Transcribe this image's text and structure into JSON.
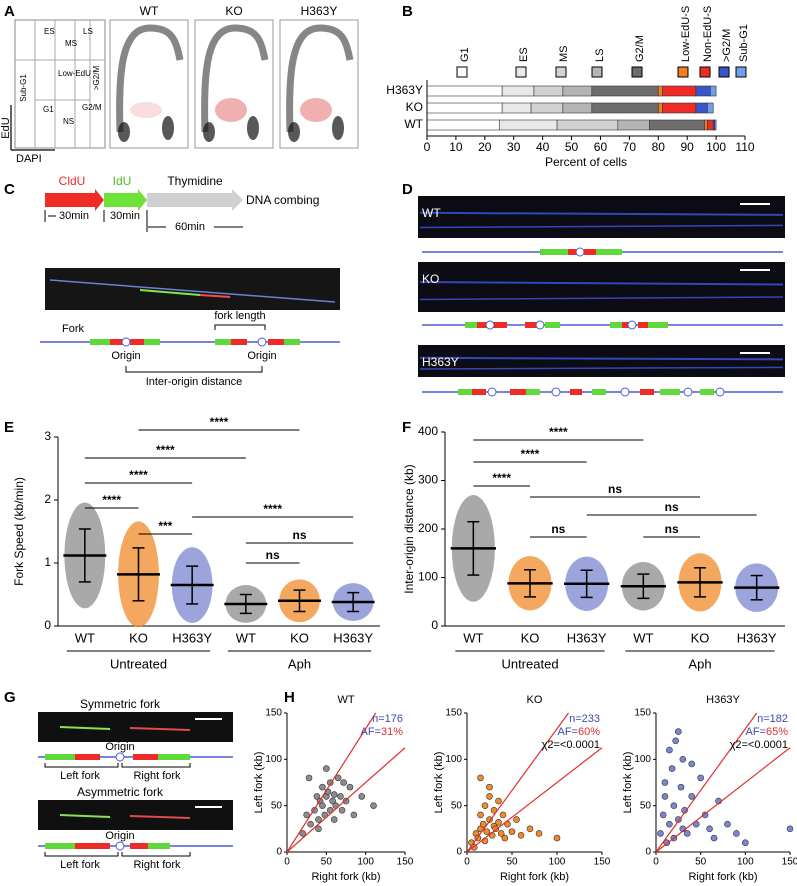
{
  "panel_labels": [
    "A",
    "B",
    "C",
    "D",
    "E",
    "F",
    "G",
    "H"
  ],
  "panel_a": {
    "samples": [
      "WT",
      "KO",
      "H363Y"
    ],
    "gates": [
      "ES",
      "MS",
      "LS",
      "Sub-G1",
      "Low-EdU",
      "G1",
      "NS",
      "G2/M",
      ">G2/M"
    ],
    "x_axis": "DAPI",
    "y_axis": "EdU"
  },
  "panel_c": {
    "cldu": "CldU",
    "idu": "IdU",
    "thymidine": "Thymidine",
    "combing": "DNA combing",
    "durations": [
      "30min",
      "30min",
      "60min"
    ],
    "fork": "Fork",
    "fork_length": "fork length",
    "origins": [
      "Origin",
      "Origin"
    ],
    "inter_origin": "Inter-origin distance"
  },
  "panel_d": {
    "samples": [
      "WT",
      "KO",
      "H363Y"
    ]
  },
  "panel_g": {
    "symmetric": {
      "title": "Symmetric fork",
      "origin": "Origin",
      "left": "Left fork",
      "right": "Right fork"
    },
    "asymmetric": {
      "title": "Asymmetric fork",
      "origin": "Origin",
      "left": "Left fork",
      "right": "Right fork"
    }
  },
  "chart_data": [
    {
      "type": "stacked_bar_h",
      "xlabel": "Percent of cells",
      "categories": [
        "H363Y",
        "KO",
        "WT"
      ],
      "xlim": [
        0,
        110
      ],
      "xticks": [
        0,
        10,
        20,
        30,
        40,
        50,
        60,
        70,
        80,
        90,
        100,
        110
      ],
      "series": [
        {
          "name": "G1",
          "color": "#ffffff",
          "values": [
            26,
            26,
            25
          ]
        },
        {
          "name": "ES",
          "color": "#e8e8e8",
          "values": [
            11,
            10,
            20
          ]
        },
        {
          "name": "MS",
          "color": "#d2d2d2",
          "values": [
            10,
            11,
            21
          ]
        },
        {
          "name": "LS",
          "color": "#b4b4b4",
          "values": [
            10,
            10,
            11
          ]
        },
        {
          "name": "G2/M",
          "color": "#6d6d6d",
          "values": [
            23,
            23,
            19
          ]
        },
        {
          "name": "Low-EdU-S",
          "color": "#f07f22",
          "values": [
            1.5,
            1.5,
            1
          ]
        },
        {
          "name": "Non-EdU-S",
          "color": "#ee2b24",
          "values": [
            11.5,
            11.5,
            2
          ]
        },
        {
          "name": ">G2/M",
          "color": "#3a55c8",
          "values": [
            5,
            4,
            0.5
          ]
        },
        {
          "name": "Sub-G1",
          "color": "#6f9fe6",
          "values": [
            2,
            2,
            0.5
          ]
        }
      ]
    },
    {
      "type": "dot_plot",
      "ylabel": "Fork Speed (kb/min)",
      "categories": [
        "WT",
        "KO",
        "H363Y",
        "WT",
        "KO",
        "H363Y"
      ],
      "groups": [
        "Untreated",
        "Aph"
      ],
      "colors": [
        "#8c8c8c",
        "#f08a2a",
        "#7b86d0",
        "#8c8c8c",
        "#f08a2a",
        "#7b86d0"
      ],
      "means": [
        1.12,
        0.82,
        0.65,
        0.35,
        0.4,
        0.38
      ],
      "sd": [
        0.42,
        0.42,
        0.3,
        0.15,
        0.17,
        0.15
      ],
      "ylim": [
        0,
        3
      ],
      "yticks": [
        0,
        1,
        2,
        3
      ],
      "comparisons": [
        {
          "pair": [
            1,
            4
          ],
          "label": "****"
        },
        {
          "pair": [
            0,
            3
          ],
          "label": "****"
        },
        {
          "pair": [
            0,
            2
          ],
          "label": "****"
        },
        {
          "pair": [
            0,
            1
          ],
          "label": "****"
        },
        {
          "pair": [
            2,
            5
          ],
          "label": "****"
        },
        {
          "pair": [
            1,
            2
          ],
          "label": "***"
        },
        {
          "pair": [
            3,
            5
          ],
          "label": "ns"
        },
        {
          "pair": [
            3,
            4
          ],
          "label": "ns"
        }
      ]
    },
    {
      "type": "dot_plot",
      "ylabel": "Inter-origin distance (kb)",
      "categories": [
        "WT",
        "KO",
        "H363Y",
        "WT",
        "KO",
        "H363Y"
      ],
      "groups": [
        "Untreated",
        "Aph"
      ],
      "colors": [
        "#8c8c8c",
        "#f08a2a",
        "#7b86d0",
        "#8c8c8c",
        "#f08a2a",
        "#7b86d0"
      ],
      "means": [
        160,
        88,
        87,
        82,
        90,
        79
      ],
      "sd": [
        55,
        28,
        28,
        25,
        30,
        25
      ],
      "ylim": [
        0,
        400
      ],
      "yticks": [
        0,
        100,
        200,
        300,
        400
      ],
      "comparisons": [
        {
          "pair": [
            0,
            3
          ],
          "label": "****"
        },
        {
          "pair": [
            0,
            2
          ],
          "label": "****"
        },
        {
          "pair": [
            0,
            1
          ],
          "label": "****"
        },
        {
          "pair": [
            1,
            4
          ],
          "label": "ns"
        },
        {
          "pair": [
            2,
            5
          ],
          "label": "ns"
        },
        {
          "pair": [
            1,
            2
          ],
          "label": "ns"
        },
        {
          "pair": [
            3,
            4
          ],
          "label": "ns"
        }
      ]
    },
    {
      "type": "scatter",
      "title": "WT",
      "xlabel": "Right fork (kb)",
      "ylabel": "Left fork (kb)",
      "xlim": [
        0,
        150
      ],
      "ylim": [
        0,
        150
      ],
      "xticks": [
        0,
        50,
        100,
        150
      ],
      "yticks": [
        0,
        50,
        100,
        150
      ],
      "color": "#8c8c8c",
      "ref_lines": {
        "color": "#e03030",
        "slopes": [
          1.33,
          0.75
        ]
      },
      "n": "n=176",
      "af": [
        "AF=",
        "31%"
      ],
      "x": [
        20,
        25,
        30,
        35,
        38,
        40,
        42,
        45,
        45,
        48,
        50,
        52,
        55,
        55,
        58,
        60,
        62,
        65,
        68,
        70,
        75,
        80,
        85,
        95,
        110,
        28,
        50,
        60,
        40,
        72
      ],
      "y": [
        20,
        40,
        30,
        45,
        60,
        35,
        55,
        50,
        70,
        40,
        60,
        65,
        45,
        75,
        55,
        62,
        50,
        80,
        60,
        45,
        55,
        70,
        40,
        60,
        50,
        80,
        90,
        35,
        25,
        75
      ]
    },
    {
      "type": "scatter",
      "title": "KO",
      "xlabel": "Right fork (kb)",
      "ylabel": "Left fork (kb)",
      "xlim": [
        0,
        150
      ],
      "ylim": [
        0,
        150
      ],
      "xticks": [
        0,
        50,
        100,
        150
      ],
      "yticks": [
        0,
        50,
        100,
        150
      ],
      "color": "#f08a2a",
      "ref_lines": {
        "color": "#e03030",
        "slopes": [
          1.33,
          0.75
        ]
      },
      "n": "n=233",
      "af": [
        "AF=",
        "60%"
      ],
      "chi": "χ2=<0.0001",
      "x": [
        5,
        8,
        10,
        12,
        15,
        15,
        18,
        20,
        20,
        22,
        25,
        25,
        28,
        30,
        30,
        32,
        35,
        38,
        40,
        42,
        45,
        50,
        55,
        60,
        70,
        80,
        100,
        15,
        25,
        35
      ],
      "y": [
        10,
        5,
        20,
        15,
        25,
        40,
        30,
        12,
        50,
        22,
        35,
        60,
        18,
        28,
        45,
        25,
        32,
        20,
        40,
        15,
        30,
        22,
        35,
        18,
        25,
        20,
        15,
        80,
        70,
        55
      ]
    },
    {
      "type": "scatter",
      "title": "H363Y",
      "xlabel": "Right fork (kb)",
      "ylabel": "Left fork (kb)",
      "xlim": [
        0,
        150
      ],
      "ylim": [
        0,
        150
      ],
      "xticks": [
        0,
        50,
        100,
        150
      ],
      "yticks": [
        0,
        50,
        100,
        150
      ],
      "color": "#7b86d0",
      "ref_lines": {
        "color": "#e03030",
        "slopes": [
          1.33,
          0.75
        ]
      },
      "n": "n=182",
      "af": [
        "AF=",
        "65%"
      ],
      "chi": "χ2=<0.0001",
      "x": [
        5,
        8,
        10,
        12,
        15,
        18,
        20,
        20,
        22,
        25,
        28,
        30,
        30,
        32,
        35,
        40,
        45,
        50,
        55,
        60,
        65,
        70,
        80,
        90,
        100,
        150,
        15,
        25,
        40,
        10
      ],
      "y": [
        20,
        40,
        60,
        10,
        30,
        90,
        50,
        15,
        120,
        35,
        70,
        25,
        100,
        45,
        20,
        60,
        30,
        80,
        40,
        25,
        15,
        55,
        30,
        20,
        10,
        25,
        110,
        130,
        95,
        75
      ]
    }
  ]
}
